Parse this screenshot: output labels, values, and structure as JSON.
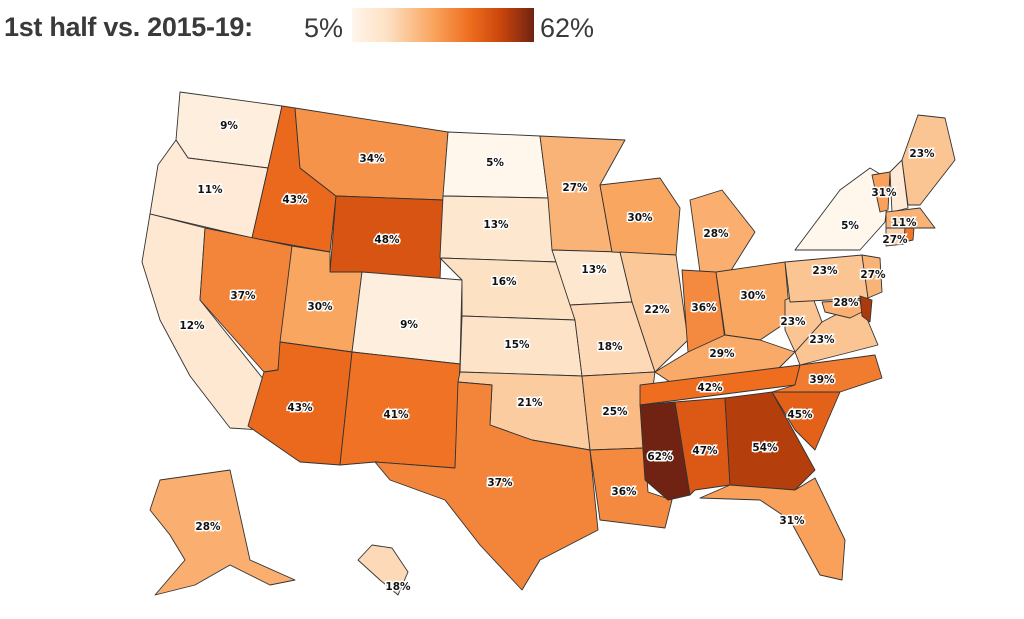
{
  "legend": {
    "title": "1st half vs. 2015-19:",
    "min_label": "5%",
    "max_label": "62%",
    "min_value": 5,
    "max_value": 62,
    "colors": [
      "#fff6ec",
      "#fde0c2",
      "#f9a35c",
      "#ee6d1f",
      "#c9450b",
      "#702312"
    ]
  },
  "chart_data": {
    "type": "choropleth",
    "states": [
      {
        "name": "WA",
        "value": 9,
        "label": "9%"
      },
      {
        "name": "OR",
        "value": 11,
        "label": "11%"
      },
      {
        "name": "CA",
        "value": 12,
        "label": "12%"
      },
      {
        "name": "ID",
        "value": 43,
        "label": "43%"
      },
      {
        "name": "NV",
        "value": 37,
        "label": "37%"
      },
      {
        "name": "MT",
        "value": 34,
        "label": "34%"
      },
      {
        "name": "WY",
        "value": 48,
        "label": "48%"
      },
      {
        "name": "UT",
        "value": 30,
        "label": "30%"
      },
      {
        "name": "AZ",
        "value": 43,
        "label": "43%"
      },
      {
        "name": "CO",
        "value": 9,
        "label": "9%"
      },
      {
        "name": "NM",
        "value": 41,
        "label": "41%"
      },
      {
        "name": "ND",
        "value": 5,
        "label": "5%"
      },
      {
        "name": "SD",
        "value": 13,
        "label": "13%"
      },
      {
        "name": "NE",
        "value": 16,
        "label": "16%"
      },
      {
        "name": "KS",
        "value": 15,
        "label": "15%"
      },
      {
        "name": "OK",
        "value": 21,
        "label": "21%"
      },
      {
        "name": "TX",
        "value": 37,
        "label": "37%"
      },
      {
        "name": "MN",
        "value": 27,
        "label": "27%"
      },
      {
        "name": "IA",
        "value": 13,
        "label": "13%"
      },
      {
        "name": "MO",
        "value": 18,
        "label": "18%"
      },
      {
        "name": "AR",
        "value": 25,
        "label": "25%"
      },
      {
        "name": "LA",
        "value": 36,
        "label": "36%"
      },
      {
        "name": "WI",
        "value": 30,
        "label": "30%"
      },
      {
        "name": "IL",
        "value": 22,
        "label": "22%"
      },
      {
        "name": "MI",
        "value": 28,
        "label": "28%"
      },
      {
        "name": "IN",
        "value": 36,
        "label": "36%"
      },
      {
        "name": "OH",
        "value": 30,
        "label": "30%"
      },
      {
        "name": "KY",
        "value": 29,
        "label": "29%"
      },
      {
        "name": "TN",
        "value": 42,
        "label": "42%"
      },
      {
        "name": "MS",
        "value": 62,
        "label": "62%"
      },
      {
        "name": "AL",
        "value": 47,
        "label": "47%"
      },
      {
        "name": "GA",
        "value": 54,
        "label": "54%"
      },
      {
        "name": "FL",
        "value": 31,
        "label": "31%"
      },
      {
        "name": "SC",
        "value": 45,
        "label": "45%"
      },
      {
        "name": "NC",
        "value": 39,
        "label": "39%"
      },
      {
        "name": "VA",
        "value": 23,
        "label": "23%"
      },
      {
        "name": "WV",
        "value": 23,
        "label": "23%"
      },
      {
        "name": "PA",
        "value": 23,
        "label": "23%"
      },
      {
        "name": "NY",
        "value": 5,
        "label": "5%"
      },
      {
        "name": "NJ",
        "value": 27,
        "label": "27%"
      },
      {
        "name": "MD",
        "value": 28,
        "label": "28%"
      },
      {
        "name": "DE",
        "value": 55
      },
      {
        "name": "VT",
        "value": 31,
        "label": "31%"
      },
      {
        "name": "NH",
        "value": 11,
        "label": "11%"
      },
      {
        "name": "MA",
        "value": 27,
        "label": "27%"
      },
      {
        "name": "ME",
        "value": 23,
        "label": "23%"
      },
      {
        "name": "CT",
        "value": 20
      },
      {
        "name": "RI",
        "value": 40
      },
      {
        "name": "AK",
        "value": 28,
        "label": "28%"
      },
      {
        "name": "HI",
        "value": 18,
        "label": "18%"
      }
    ]
  }
}
